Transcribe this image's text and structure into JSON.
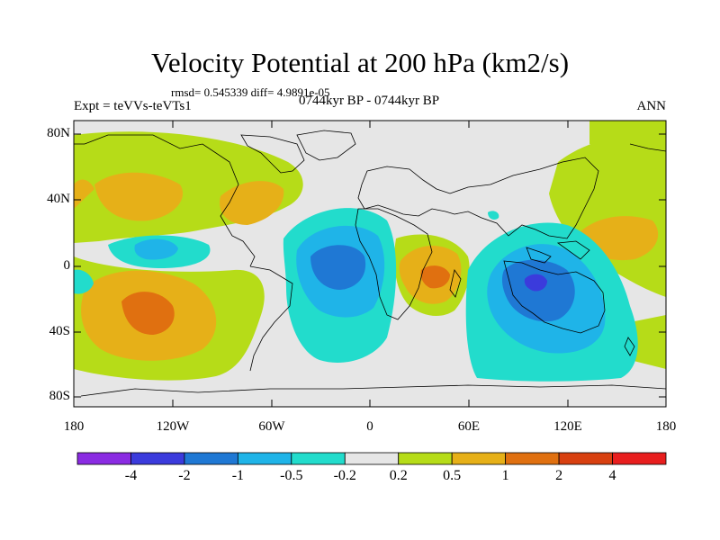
{
  "title": "Velocity Potential at 200 hPa (km2/s)",
  "stats": "rmsd= 0.545339 diff= 4.9891e-05",
  "left_label": "Expt = teVVs-teVTs1",
  "center_label": "0744kyr BP - 0744kyr BP",
  "right_label": "ANN",
  "y_ticks": [
    "80N",
    "40N",
    "0",
    "40S",
    "80S"
  ],
  "x_ticks": [
    "180",
    "120W",
    "60W",
    "0",
    "60E",
    "120E",
    "180"
  ],
  "colorbar": {
    "labels": [
      "-4",
      "-2",
      "-1",
      "-0.5",
      "-0.2",
      "0.2",
      "0.5",
      "1",
      "2",
      "4"
    ],
    "colors": [
      "#8a2be2",
      "#3b3bdc",
      "#1f78d4",
      "#1fb4e8",
      "#22dccc",
      "#e6e6e6",
      "#b6dc18",
      "#e6b018",
      "#e07010",
      "#d84010",
      "#e81e1e"
    ]
  }
}
